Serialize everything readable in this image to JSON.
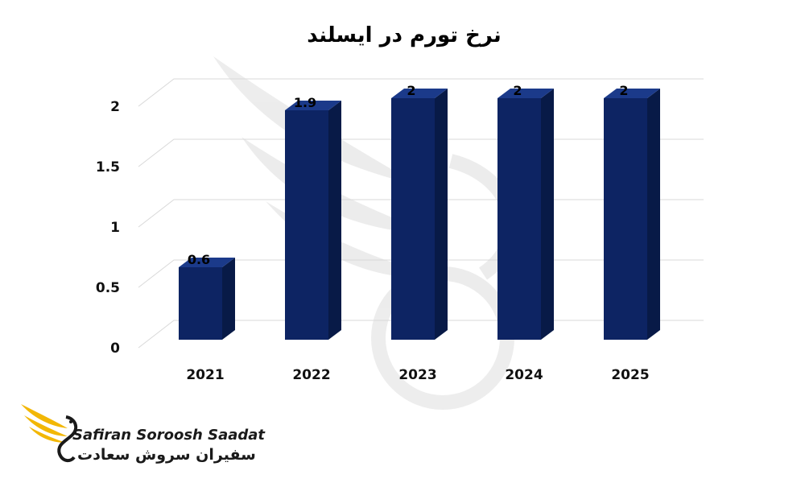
{
  "chart_data": {
    "type": "bar",
    "title": "نرخ تورم در ایسلند",
    "categories": [
      "2021",
      "2022",
      "2023",
      "2024",
      "2025"
    ],
    "values": [
      0.6,
      1.9,
      2,
      2,
      2
    ],
    "data_labels": [
      "0.6",
      "1.9",
      "2",
      "2",
      "2"
    ],
    "ylim": [
      0,
      2
    ],
    "yticks": [
      "0",
      "0.5",
      "1",
      "1.5",
      "2"
    ],
    "ytick_values": [
      0,
      0.5,
      1,
      1.5,
      2
    ],
    "grid": true,
    "bar_color": "#0d2463",
    "bar_side_color": "#081a47",
    "bar_top_color": "#1b3a8a"
  },
  "branding": {
    "name_en": "Safiran Soroosh Saadat",
    "name_fa": "سفیران سروش سعادت",
    "accent_color": "#f2b705"
  }
}
